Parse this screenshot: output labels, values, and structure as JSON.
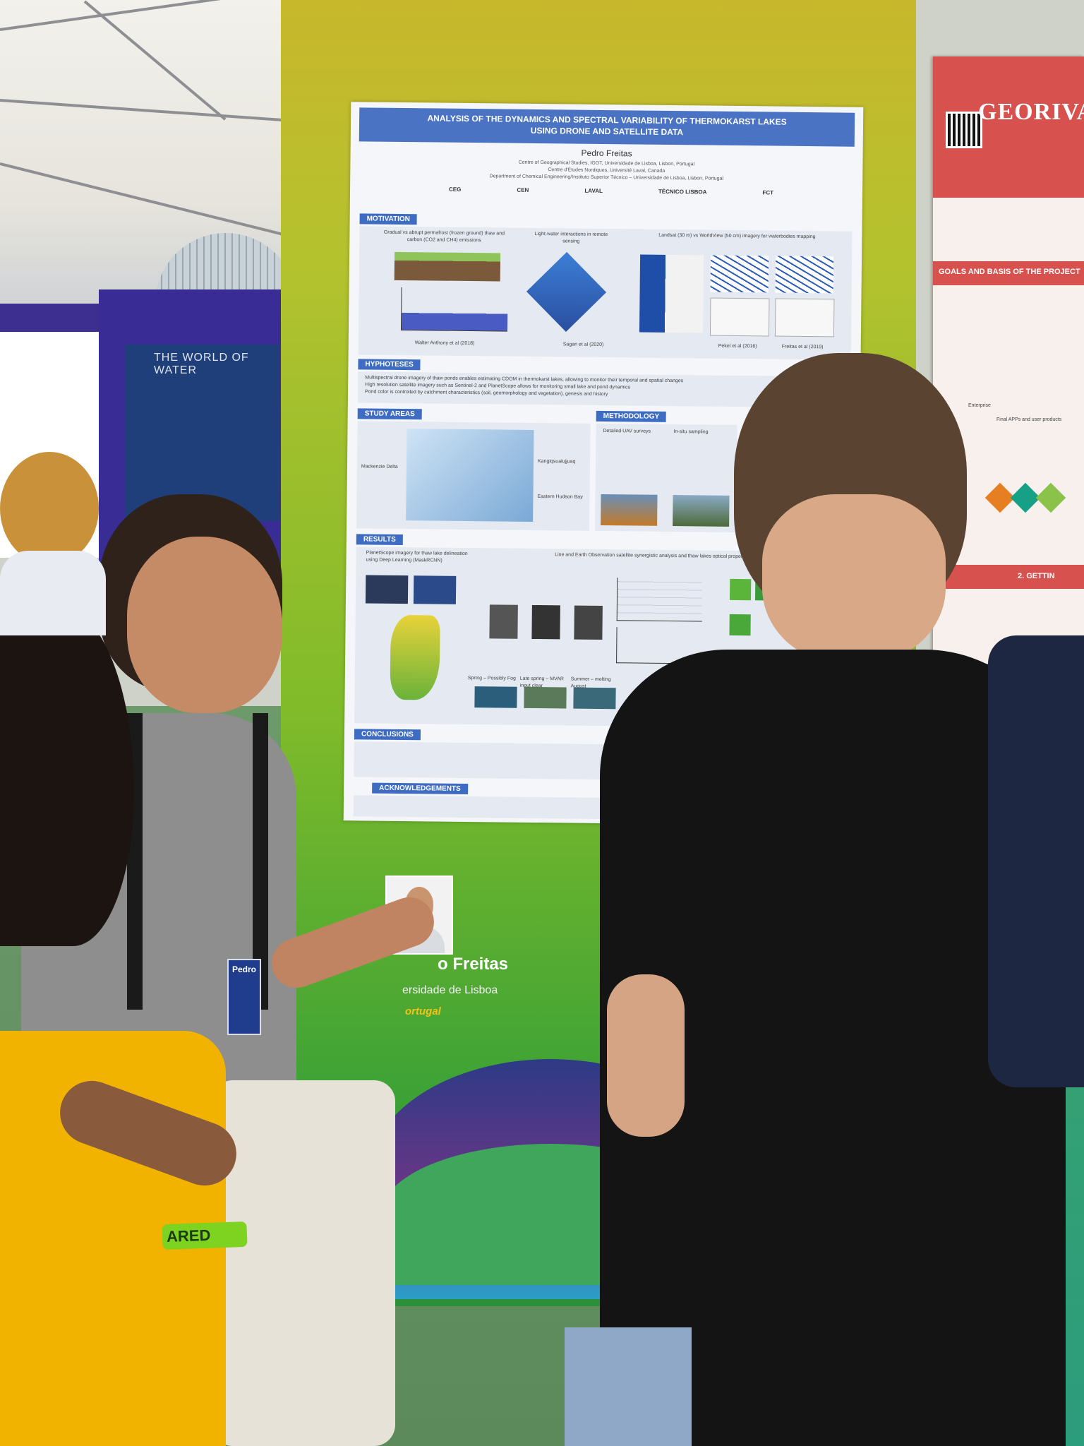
{
  "scene": {
    "description_colors": {
      "panel_green": "#7fbb2a",
      "poster_blue": "#4a73c4",
      "red_brand": "#d7514e"
    }
  },
  "main_poster": {
    "title_line1": "ANALYSIS OF THE DYNAMICS AND SPECTRAL VARIABILITY OF THERMOKARST LAKES",
    "title_line2": "USING DRONE AND SATELLITE DATA",
    "author": "Pedro Freitas",
    "affiliation1": "Centre of Geographical Studies, IGOT, Universidade de Lisboa, Lisbon, Portugal",
    "affiliation2": "Centre d'Études Nordiques, Université Laval, Canada",
    "affiliation3": "Department of Chemical Engineering/Instituto Superior Técnico – Universidade de Lisboa, Lisbon, Portugal",
    "logos": [
      "CEG",
      "CEN",
      "LAVAL",
      "TÉCNICO LISBOA",
      "FCT"
    ],
    "sections": {
      "motivation": "MOTIVATION",
      "hypotheses": "HYPHOTESES",
      "study_areas": "STUDY AREAS",
      "methodology": "METHODOLOGY",
      "results": "RESULTS",
      "conclusions": "CONCLUSIONS",
      "acknowledgements": "ACKNOWLEDGEMENTS"
    },
    "motivation_captions": [
      "Gradual vs abrupt permafrost (frozen ground) thaw and carbon (CO2 and CH4) emissions",
      "Light-water interactions in remote sensing",
      "Landsat (30 m) vs WorldView (50 cm) imagery for waterbodies mapping"
    ],
    "motivation_refs": [
      "Walter Anthony et al (2018)",
      "Sagan et al (2020)",
      "Pekel et al (2016)",
      "Freitas et al (2019)"
    ],
    "hypotheses_lines": [
      "Multispectral drone imagery of thaw ponds enables estimating CDOM in thermokarst lakes, allowing to monitor their temporal and spatial changes",
      "High resolution satellite imagery such as Sentinel-2 and PlanetScope allows for monitoring small lake and pond dynamics",
      "Pond color is controlled by catchment characteristics (soil, geomorphology and vegetation), genesis and history"
    ],
    "study_labels": [
      "Mackenzie Delta",
      "Kangiqsualujjuaq",
      "Eastern Hudson Bay"
    ],
    "method_labels": [
      "Detailed UAV surveys",
      "In-situ sampling"
    ],
    "results_captions": [
      "PlanetScope imagery for thaw lake delineation using Deep Learning (MaskRCNN)",
      "Line and Earth Observation satellite synergistic analysis and thaw lakes optical properties"
    ],
    "season_labels": [
      "Spring – Possibly Fog",
      "Late spring – MVAR input clear",
      "Summer – melting August"
    ]
  },
  "name_plate": {
    "name": "o Freitas",
    "university": "ersidade de Lisboa",
    "country": "ortugal"
  },
  "badge": {
    "text": "Pedro"
  },
  "wristband": {
    "text": "ARED"
  },
  "right_poster": {
    "title": "GEORIVAS",
    "subtitle": "GOALS AND BASIS OF THE PROJECT",
    "sub_labels": [
      "Enterprise",
      "Final APPs and user products"
    ],
    "section2": "2. GETTIN"
  },
  "bg_poster": {
    "title": "THE WORLD OF WATER"
  }
}
